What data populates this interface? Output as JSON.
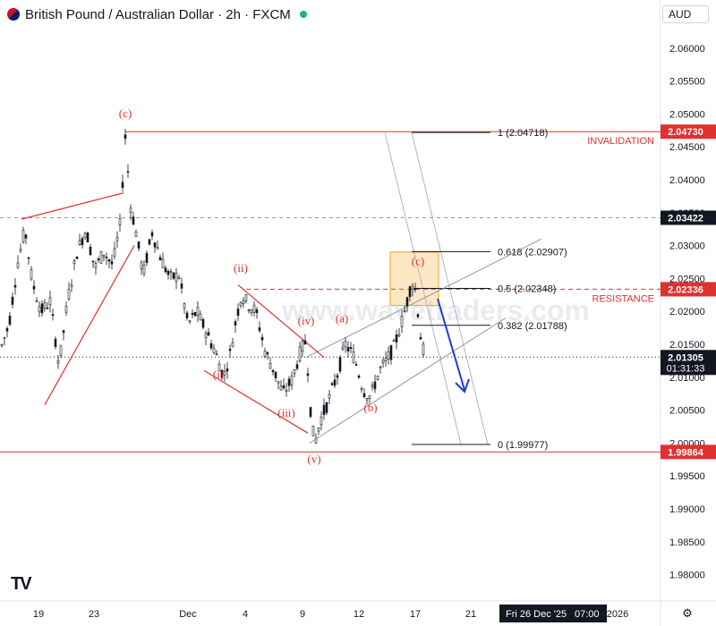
{
  "header": {
    "title": "British Pound / Australian Dollar · 2h · FXCM",
    "currency": "AUD"
  },
  "watermark": "www.wavetraders.com",
  "colors": {
    "candle": "#131722",
    "wave": "#e03030",
    "fib": "#131722",
    "arrow": "#1e3cd6",
    "highlight": "#f7a21b",
    "price_tag": "#131722",
    "red_tag": "#e03030"
  },
  "chart_data": {
    "type": "candlestick",
    "y_ticks": [
      "2.06000",
      "2.05500",
      "2.05000",
      "2.04500",
      "2.04000",
      "2.03500",
      "2.03000",
      "2.02500",
      "2.02000",
      "2.01500",
      "2.01000",
      "2.00500",
      "2.00000",
      "1.99500",
      "1.99000",
      "1.98500",
      "1.98000"
    ],
    "ylim": [
      1.976,
      2.0635
    ],
    "x_ticks": [
      "19",
      "23",
      "Dec",
      "4",
      "9",
      "12",
      "17",
      "21",
      "2026"
    ],
    "crosshair_date": "Fri 26 Dec '25",
    "crosshair_time": "07:00",
    "path": [
      [
        0,
        2.014
      ],
      [
        10,
        2.018
      ],
      [
        20,
        2.0275
      ],
      [
        28,
        2.0325
      ],
      [
        36,
        2.0245
      ],
      [
        46,
        2.02
      ],
      [
        56,
        2.0215
      ],
      [
        66,
        2.0118
      ],
      [
        76,
        2.022
      ],
      [
        86,
        2.029
      ],
      [
        96,
        2.0325
      ],
      [
        106,
        2.0265
      ],
      [
        116,
        2.029
      ],
      [
        126,
        2.027
      ],
      [
        134,
        2.033
      ],
      [
        140,
        2.0465
      ],
      [
        146,
        2.036
      ],
      [
        152,
        2.032
      ],
      [
        160,
        2.0255
      ],
      [
        170,
        2.032
      ],
      [
        180,
        2.028
      ],
      [
        190,
        2.025
      ],
      [
        200,
        2.0255
      ],
      [
        210,
        2.018
      ],
      [
        220,
        2.02
      ],
      [
        230,
        2.017
      ],
      [
        240,
        2.014
      ],
      [
        250,
        2.01
      ],
      [
        258,
        2.014
      ],
      [
        264,
        2.019
      ],
      [
        270,
        2.0225
      ],
      [
        278,
        2.021
      ],
      [
        286,
        2.02
      ],
      [
        296,
        2.014
      ],
      [
        306,
        2.011
      ],
      [
        316,
        2.0075
      ],
      [
        326,
        2.0095
      ],
      [
        336,
        2.014
      ],
      [
        342,
        2.0155
      ],
      [
        348,
        2.003
      ],
      [
        352,
        2.0
      ],
      [
        358,
        2.0035
      ],
      [
        366,
        2.006
      ],
      [
        376,
        2.01
      ],
      [
        386,
        2.015
      ],
      [
        396,
        2.013
      ],
      [
        406,
        2.008
      ],
      [
        414,
        2.007
      ],
      [
        424,
        2.011
      ],
      [
        432,
        2.0125
      ],
      [
        440,
        2.0145
      ],
      [
        448,
        2.018
      ],
      [
        454,
        2.021
      ],
      [
        460,
        2.0245
      ],
      [
        465,
        2.023
      ],
      [
        469,
        2.017
      ],
      [
        474,
        2.0133
      ]
    ],
    "hlines": [
      {
        "label": "INVALIDATION",
        "value": 2.0473,
        "style": "solid"
      },
      {
        "label": "RESISTANCE",
        "value": 2.02336,
        "style": "dashed"
      },
      {
        "label": "",
        "value": 1.99864,
        "style": "solid"
      },
      {
        "label": "",
        "value": 2.03422,
        "style": "dashed-gray"
      },
      {
        "label": "",
        "value": 2.01305,
        "style": "dotted"
      }
    ],
    "fib_levels": [
      {
        "ratio": "1",
        "value": 2.04718,
        "text": "1 (2.04718)"
      },
      {
        "ratio": "0.618",
        "value": 2.02907,
        "text": "0.618 (2.02907)"
      },
      {
        "ratio": "0.5",
        "value": 2.02348,
        "text": "0.5 (2.02348)"
      },
      {
        "ratio": "0.382",
        "value": 2.01788,
        "text": "0.382 (2.01788)"
      },
      {
        "ratio": "0",
        "value": 1.99977,
        "text": "0 (1.99977)"
      }
    ],
    "wave_labels": [
      {
        "text": "(c)",
        "x": 140,
        "y": 2.0495
      },
      {
        "text": "(ii)",
        "x": 269,
        "y": 2.026
      },
      {
        "text": "(i)",
        "x": 244,
        "y": 2.0098
      },
      {
        "text": "(iv)",
        "x": 342,
        "y": 2.018
      },
      {
        "text": "(iii)",
        "x": 320,
        "y": 2.004
      },
      {
        "text": "(v)",
        "x": 351,
        "y": 1.997
      },
      {
        "text": "(a)",
        "x": 382,
        "y": 2.0183
      },
      {
        "text": "(b)",
        "x": 414,
        "y": 2.0048
      },
      {
        "text": "(c)",
        "x": 467,
        "y": 2.027
      }
    ],
    "price_tags": [
      {
        "value": "2.04730",
        "y": 2.0473,
        "color": "red"
      },
      {
        "value": "2.03422",
        "y": 2.03422,
        "color": "dark"
      },
      {
        "value": "2.02336",
        "y": 2.02336,
        "color": "red"
      },
      {
        "value": "2.01305",
        "y": 2.01305,
        "color": "dark",
        "sub": "01:31:33"
      },
      {
        "value": "1.99864",
        "y": 1.99864,
        "color": "red"
      }
    ]
  }
}
